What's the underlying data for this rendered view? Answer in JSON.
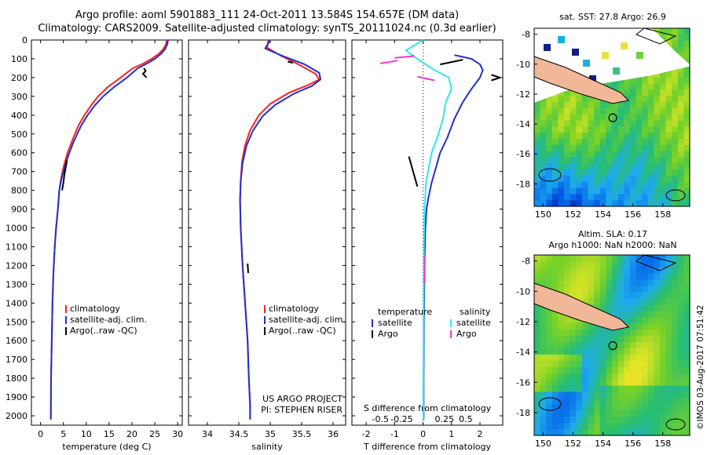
{
  "header": {
    "title_line1": "Argo profile: aoml 5901883_111 24-Oct-2011 13.584S 154.657E (DM data)",
    "title_line2": "Climatology: CARS2009. Satellite-adjusted climatology: synTS_20111024.nc (0.3d earlier)"
  },
  "colors": {
    "climatology": "#ff2020",
    "satellite": "#2030d0",
    "argo": "#000000",
    "sal_satellite": "#30e8e8",
    "sal_argo": "#ff30d0"
  },
  "chart_data": [
    {
      "id": "temperature",
      "type": "line",
      "xlabel": "temperature (deg C)",
      "ylabel": "",
      "xlim": [
        -2,
        31
      ],
      "ylim": [
        0,
        2050
      ],
      "xticks": [
        0,
        5,
        10,
        15,
        20,
        25,
        30
      ],
      "xtick_labels": [
        "0",
        "5",
        "10",
        "15",
        "20",
        "25",
        "30"
      ],
      "yticks": [
        0,
        100,
        200,
        300,
        400,
        500,
        600,
        700,
        800,
        900,
        1000,
        1100,
        1200,
        1300,
        1400,
        1500,
        1600,
        1700,
        1800,
        1900,
        2000
      ],
      "ytick_labels": [
        "0",
        "100",
        "200",
        "300",
        "400",
        "500",
        "600",
        "700",
        "800",
        "900",
        "1000",
        "1100",
        "1200",
        "1300",
        "1400",
        "1500",
        "1600",
        "1700",
        "1800",
        "1900",
        "2000"
      ],
      "legend": [
        "climatology",
        "satellite-adj. clim.",
        "Argo(..raw -QC)"
      ],
      "series": [
        {
          "name": "climatology",
          "color": "#ff2020",
          "x": [
            27.6,
            27.4,
            26.8,
            25.8,
            24.3,
            22.5,
            20.2,
            17.5,
            14.7,
            12.6,
            11.0,
            9.6,
            8.4,
            7.5,
            6.7,
            5.9,
            5.3,
            4.8,
            4.4,
            4.1,
            3.8,
            3.4,
            3.1,
            2.8,
            2.6,
            2.45,
            2.3,
            2.25
          ],
          "y": [
            0,
            25,
            50,
            75,
            100,
            125,
            150,
            200,
            250,
            300,
            350,
            400,
            450,
            500,
            550,
            600,
            650,
            700,
            750,
            800,
            900,
            1000,
            1100,
            1250,
            1400,
            1600,
            1800,
            2020
          ]
        },
        {
          "name": "satellite-adj. clim.",
          "color": "#2030d0",
          "x": [
            27.9,
            27.7,
            27.2,
            26.3,
            25.0,
            23.3,
            21.3,
            18.9,
            16.1,
            13.7,
            11.8,
            10.3,
            9.0,
            8.0,
            7.1,
            6.3,
            5.6,
            5.0,
            4.5,
            4.1,
            3.8,
            3.4,
            3.1,
            2.8,
            2.6,
            2.45,
            2.3,
            2.25
          ],
          "y": [
            0,
            25,
            50,
            75,
            100,
            125,
            150,
            200,
            250,
            300,
            350,
            400,
            450,
            500,
            550,
            600,
            650,
            700,
            750,
            800,
            900,
            1000,
            1100,
            1250,
            1400,
            1600,
            1800,
            2020
          ]
        },
        {
          "name": "Argo(..raw -QC)",
          "color": "#000000",
          "segments": [
            {
              "x": [
                22.6,
                23.0,
                22.4,
                23.2
              ],
              "y": [
                150,
                165,
                180,
                200
              ]
            },
            {
              "x": [
                5.8,
                5.5,
                5.2,
                5.0,
                4.7
              ],
              "y": [
                640,
                680,
                720,
                760,
                800
              ]
            }
          ]
        }
      ]
    },
    {
      "id": "salinity",
      "type": "line",
      "xlabel": "salinity",
      "xlim": [
        33.7,
        36.2
      ],
      "ylim": [
        0,
        2050
      ],
      "xticks": [
        34,
        34.5,
        35,
        35.5,
        36
      ],
      "xtick_labels": [
        "34",
        "34.5",
        "35",
        "35.5",
        "36"
      ],
      "legend": [
        "climatology",
        "satellite-adj. clim.",
        "Argo(..raw -QC)"
      ],
      "annotation": [
        "US ARGO PROJECT",
        "PI: STEPHEN RISER"
      ],
      "series": [
        {
          "name": "climatology",
          "color": "#ff2020",
          "x": [
            34.97,
            34.95,
            35.15,
            35.45,
            35.72,
            35.78,
            35.6,
            35.3,
            35.0,
            34.82,
            34.68,
            34.6,
            34.55,
            34.53,
            34.52,
            34.53,
            34.56,
            34.6,
            34.64,
            34.66,
            34.68,
            34.68
          ],
          "y": [
            0,
            40,
            80,
            130,
            180,
            210,
            240,
            280,
            340,
            400,
            480,
            560,
            650,
            750,
            850,
            1000,
            1200,
            1400,
            1600,
            1800,
            1950,
            2020
          ]
        },
        {
          "name": "satellite-adj. clim.",
          "color": "#2030d0",
          "x": [
            35.0,
            34.92,
            35.2,
            35.55,
            35.78,
            35.8,
            35.66,
            35.38,
            35.08,
            34.88,
            34.72,
            34.62,
            34.56,
            34.53,
            34.52,
            34.53,
            34.56,
            34.6,
            34.64,
            34.66,
            34.68,
            34.68
          ],
          "y": [
            0,
            45,
            85,
            130,
            175,
            210,
            245,
            285,
            345,
            405,
            485,
            565,
            655,
            755,
            855,
            1000,
            1200,
            1400,
            1600,
            1800,
            1950,
            2020
          ]
        },
        {
          "name": "Argo(..raw -QC)",
          "color": "#000000",
          "segments": [
            {
              "x": [
                35.28,
                35.36
              ],
              "y": [
                115,
                122
              ]
            },
            {
              "x": [
                34.64,
                34.65
              ],
              "y": [
                1190,
                1240
              ]
            }
          ]
        }
      ]
    },
    {
      "id": "difference",
      "type": "line",
      "xlabel": "T difference from climatology",
      "xlabel_top": "S difference from climatology",
      "xlim": [
        -2.5,
        2.8
      ],
      "ylim": [
        0,
        2050
      ],
      "xticks": [
        -2,
        -1,
        0,
        1,
        2
      ],
      "xtick_labels": [
        "-2",
        "-1",
        "0",
        "1",
        "2"
      ],
      "s_xticks": [
        -1.5,
        -0.75,
        0.75,
        1.5
      ],
      "s_xtick_labels": [
        "-0.5",
        "-0.25",
        "0.25",
        "0.5"
      ],
      "legend_headers": [
        "temperature",
        "salinity"
      ],
      "legend_temperature": [
        "satellite",
        "Argo"
      ],
      "legend_salinity": [
        "satellite",
        "Argo"
      ],
      "series": [
        {
          "name": "temperature satellite",
          "color": "#2030d0",
          "x": [
            1.1,
            1.7,
            2.0,
            2.1,
            2.0,
            1.7,
            1.4,
            1.1,
            0.85,
            0.6,
            0.45,
            0.3,
            0.2,
            0.12,
            0.08,
            0.05,
            0.03,
            0.02,
            0.02
          ],
          "y": [
            80,
            100,
            130,
            160,
            200,
            260,
            330,
            420,
            520,
            600,
            680,
            760,
            830,
            900,
            1000,
            1200,
            1500,
            1800,
            2020
          ]
        },
        {
          "name": "salinity satellite",
          "color": "#30e8e8",
          "x": [
            0.0,
            -0.6,
            -0.2,
            0.4,
            0.9,
            1.0,
            0.8,
            0.7,
            0.5,
            0.3,
            0.2,
            0.1,
            0.08,
            0.05,
            0.03,
            0.02,
            0.01,
            0.01
          ],
          "y": [
            0,
            55,
            100,
            160,
            200,
            260,
            330,
            420,
            520,
            600,
            680,
            760,
            830,
            900,
            1100,
            1400,
            1800,
            2020
          ]
        },
        {
          "name": "temperature Argo",
          "color": "#000000",
          "segments": [
            {
              "x": [
                0.6,
                1.4
              ],
              "y": [
                130,
                105
              ]
            },
            {
              "x": [
                2.4,
                2.7,
                2.4
              ],
              "y": [
                185,
                200,
                215
              ]
            },
            {
              "x": [
                -0.5,
                -0.2
              ],
              "y": [
                620,
                780
              ]
            }
          ]
        },
        {
          "name": "salinity Argo",
          "color": "#ff30d0",
          "segments": [
            {
              "x": [
                -1.5,
                -0.9
              ],
              "y": [
                125,
                110
              ]
            },
            {
              "x": [
                -1.0,
                -0.3
              ],
              "y": [
                95,
                85
              ]
            },
            {
              "x": [
                -0.2,
                0.4
              ],
              "y": [
                195,
                215
              ]
            },
            {
              "x": [
                0.06,
                0.06
              ],
              "y": [
                1150,
                1300
              ]
            }
          ]
        }
      ]
    },
    {
      "id": "sst_map",
      "type": "heatmap",
      "title": "sat. SST: 27.8 Argo: 26.9",
      "xticks": [
        150,
        152,
        154,
        156,
        158
      ],
      "xtick_labels": [
        "150",
        "152",
        "154",
        "156",
        "158"
      ],
      "yticks": [
        -8,
        -10,
        -12,
        -14,
        -16,
        -18
      ],
      "ytick_labels": [
        "-8",
        "-10",
        "-12",
        "-14",
        "-16",
        "-18"
      ],
      "xlim": [
        149.4,
        159.8
      ],
      "ylim": [
        -19.5,
        -7.6
      ],
      "argo_position": [
        154.657,
        -13.584
      ]
    },
    {
      "id": "sla_map",
      "type": "heatmap",
      "title_line1": "Altim. SLA: 0.17",
      "title_line2": "Argo h1000: NaN h2000: NaN",
      "xticks": [
        150,
        152,
        154,
        156,
        158
      ],
      "xtick_labels": [
        "150",
        "152",
        "154",
        "156",
        "158"
      ],
      "yticks": [
        -8,
        -10,
        -12,
        -14,
        -16,
        -18
      ],
      "ytick_labels": [
        "-8",
        "-10",
        "-12",
        "-14",
        "-16",
        "-18"
      ],
      "xlim": [
        149.4,
        159.8
      ],
      "ylim": [
        -19.5,
        -7.6
      ],
      "argo_position": [
        154.657,
        -13.584
      ]
    }
  ],
  "footer": {
    "stamp": "©IMOS 03-Aug-2017 07:51:42"
  }
}
